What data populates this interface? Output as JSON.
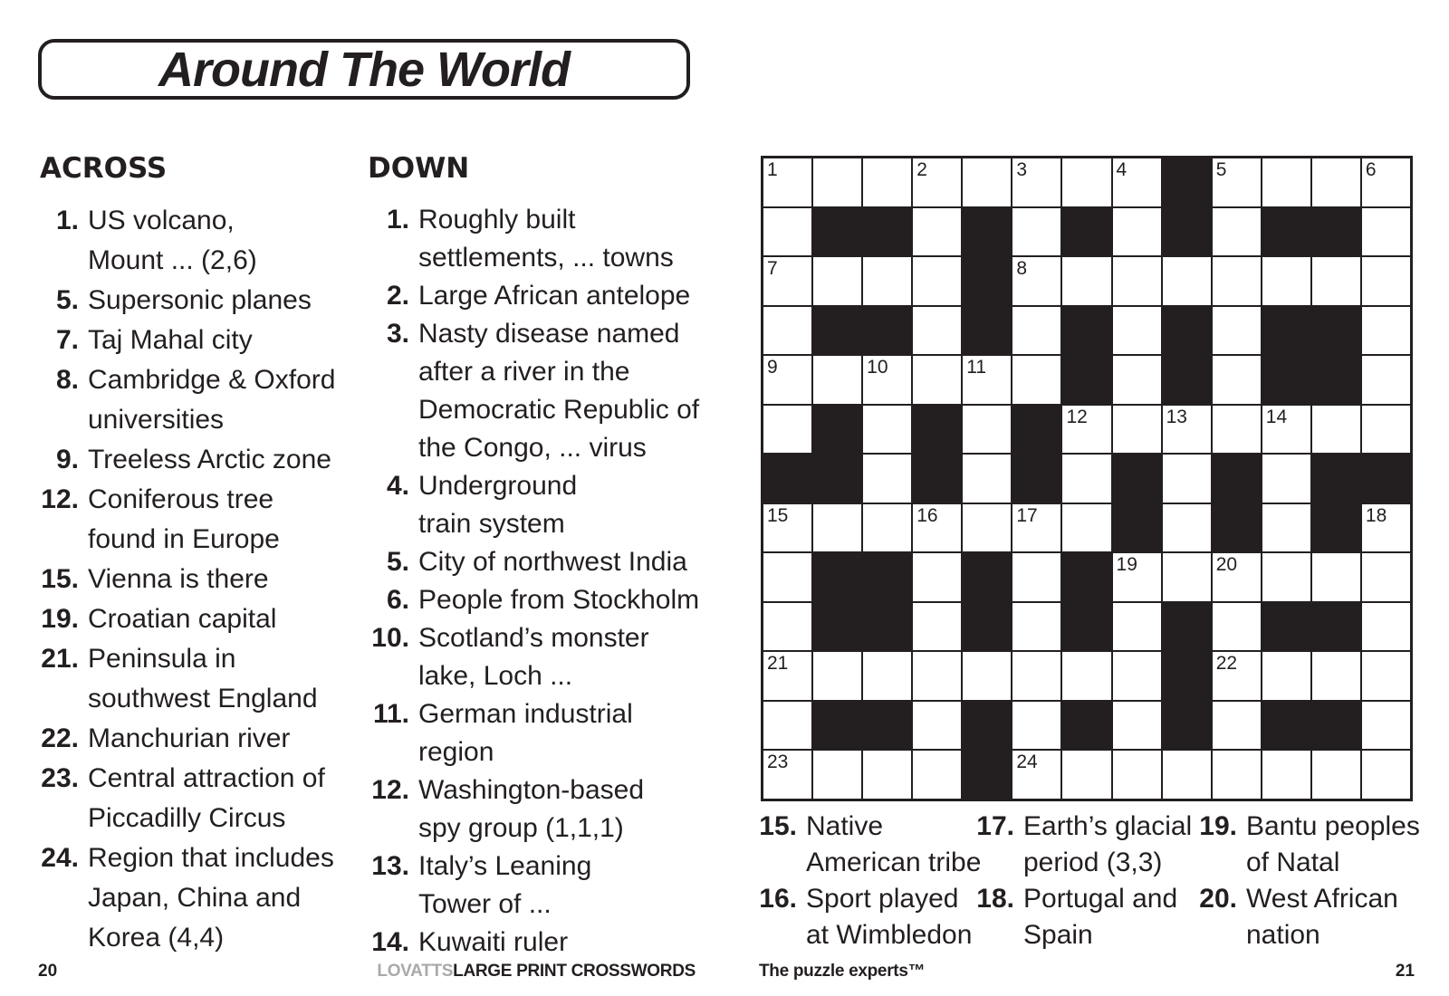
{
  "title": "Around The World",
  "colors": {
    "ink": "#231f20",
    "brand_gray": "#a9a9a9",
    "cell_white": "#ffffff"
  },
  "across": {
    "header": "ACROSS",
    "clues": [
      {
        "num": "1.",
        "lines": [
          "US volcano,",
          "Mount ... (2,6)"
        ]
      },
      {
        "num": "5.",
        "lines": [
          "Supersonic planes"
        ]
      },
      {
        "num": "7.",
        "lines": [
          "Taj Mahal city"
        ]
      },
      {
        "num": "8.",
        "lines": [
          "Cambridge & Oxford",
          "universities"
        ]
      },
      {
        "num": "9.",
        "lines": [
          "Treeless Arctic zone"
        ]
      },
      {
        "num": "12.",
        "lines": [
          "Coniferous tree",
          "found in Europe"
        ]
      },
      {
        "num": "15.",
        "lines": [
          "Vienna is there"
        ]
      },
      {
        "num": "19.",
        "lines": [
          "Croatian capital"
        ]
      },
      {
        "num": "21.",
        "lines": [
          "Peninsula in",
          "southwest England"
        ]
      },
      {
        "num": "22.",
        "lines": [
          "Manchurian river"
        ]
      },
      {
        "num": "23.",
        "lines": [
          "Central attraction of",
          "Piccadilly Circus"
        ]
      },
      {
        "num": "24.",
        "lines": [
          "Region that includes",
          "Japan, China and",
          "Korea (4,4)"
        ]
      }
    ]
  },
  "down": {
    "header": "DOWN",
    "clues": [
      {
        "num": "1.",
        "lines": [
          "Roughly built",
          "settlements, ... towns"
        ]
      },
      {
        "num": "2.",
        "lines": [
          "Large African antelope"
        ]
      },
      {
        "num": "3.",
        "lines": [
          "Nasty disease named",
          "after a river in the",
          "Democratic Republic of",
          "the Congo, ... virus"
        ]
      },
      {
        "num": "4.",
        "lines": [
          "Underground",
          "train system"
        ]
      },
      {
        "num": "5.",
        "lines": [
          "City of northwest India"
        ]
      },
      {
        "num": "6.",
        "lines": [
          "People from Stockholm"
        ]
      },
      {
        "num": "10.",
        "lines": [
          "Scotland’s monster",
          "lake, Loch ..."
        ]
      },
      {
        "num": "11.",
        "lines": [
          "German industrial",
          "region"
        ]
      },
      {
        "num": "12.",
        "lines": [
          "Washington-based",
          "spy group (1,1,1)"
        ]
      },
      {
        "num": "13.",
        "lines": [
          "Italy’s Leaning",
          "Tower of ..."
        ]
      },
      {
        "num": "14.",
        "lines": [
          "Kuwaiti ruler"
        ]
      }
    ]
  },
  "bottom": {
    "columns": [
      {
        "clues": [
          {
            "num": "15.",
            "lines": [
              "Native",
              "American tribe"
            ]
          },
          {
            "num": "16.",
            "lines": [
              "Sport played",
              "at Wimbledon"
            ]
          }
        ]
      },
      {
        "clues": [
          {
            "num": "17.",
            "lines": [
              "Earth’s glacial",
              "period (3,3)"
            ]
          },
          {
            "num": "18.",
            "lines": [
              "Portugal and",
              "Spain"
            ]
          }
        ]
      },
      {
        "clues": [
          {
            "num": "19.",
            "lines": [
              "Bantu peoples",
              "of Natal"
            ]
          },
          {
            "num": "20.",
            "lines": [
              "West African",
              "nation"
            ]
          }
        ]
      }
    ]
  },
  "grid": {
    "rows": 13,
    "cols": 13,
    "black": [
      "........#....",
      ".##.#.#.#.##.",
      "....#........",
      ".##.#.#.#.##.",
      "......#.#.##.",
      ".#.#.#.......",
      "##.#.#.#.#.##",
      ".......#.#.#.",
      ".##.#.#......",
      ".##.#.#.#.##.",
      "........#....",
      ".##.#.#.#.##.",
      "....#........"
    ],
    "numbers": [
      {
        "r": 1,
        "c": 1,
        "n": "1"
      },
      {
        "r": 1,
        "c": 4,
        "n": "2"
      },
      {
        "r": 1,
        "c": 6,
        "n": "3"
      },
      {
        "r": 1,
        "c": 8,
        "n": "4"
      },
      {
        "r": 1,
        "c": 10,
        "n": "5"
      },
      {
        "r": 1,
        "c": 13,
        "n": "6"
      },
      {
        "r": 3,
        "c": 1,
        "n": "7"
      },
      {
        "r": 3,
        "c": 6,
        "n": "8"
      },
      {
        "r": 5,
        "c": 1,
        "n": "9"
      },
      {
        "r": 5,
        "c": 3,
        "n": "10"
      },
      {
        "r": 5,
        "c": 5,
        "n": "11"
      },
      {
        "r": 6,
        "c": 7,
        "n": "12"
      },
      {
        "r": 6,
        "c": 9,
        "n": "13"
      },
      {
        "r": 6,
        "c": 11,
        "n": "14"
      },
      {
        "r": 8,
        "c": 1,
        "n": "15"
      },
      {
        "r": 8,
        "c": 4,
        "n": "16"
      },
      {
        "r": 8,
        "c": 6,
        "n": "17"
      },
      {
        "r": 8,
        "c": 13,
        "n": "18"
      },
      {
        "r": 9,
        "c": 8,
        "n": "19"
      },
      {
        "r": 9,
        "c": 10,
        "n": "20"
      },
      {
        "r": 11,
        "c": 1,
        "n": "21"
      },
      {
        "r": 11,
        "c": 10,
        "n": "22"
      },
      {
        "r": 13,
        "c": 1,
        "n": "23"
      },
      {
        "r": 13,
        "c": 6,
        "n": "24"
      }
    ]
  },
  "footer": {
    "page_left": "20",
    "brand_gray": "LOVATTS",
    "brand_black": "LARGE PRINT CROSSWORDS",
    "brand_right": "The puzzle experts™",
    "page_right": "21"
  }
}
